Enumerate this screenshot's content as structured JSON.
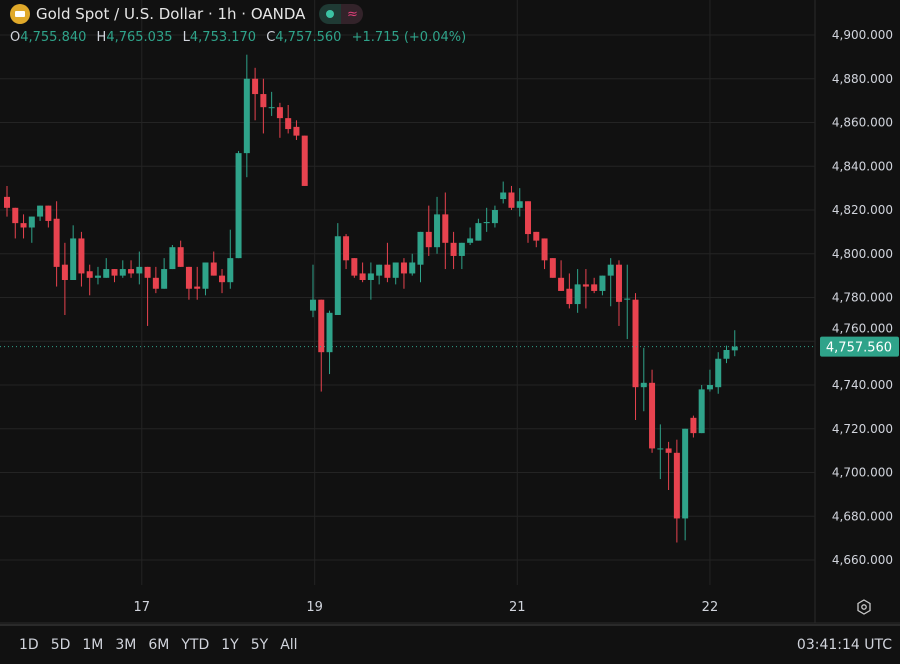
{
  "header": {
    "title": "Gold Spot / U.S. Dollar · 1h · OANDA",
    "logo_icon": "gold-bars-icon",
    "status_icon": "market-open-dot-icon",
    "indicator_icon": "approx-wave-icon",
    "ohlc": {
      "o_label": "O",
      "o": "4,755.840",
      "h_label": "H",
      "h": "4,765.035",
      "l_label": "L",
      "l": "4,753.170",
      "c_label": "C",
      "c": "4,757.560",
      "change": "+1.715 (+0.04%)"
    }
  },
  "chart_data": {
    "type": "candlestick",
    "title": "Gold Spot / U.S. Dollar · 1h · OANDA",
    "ylim": [
      4650,
      4910
    ],
    "y_ticks": [
      "4,900.000",
      "4,880.000",
      "4,860.000",
      "4,840.000",
      "4,820.000",
      "4,800.000",
      "4,780.000",
      "4,760.000",
      "4,740.000",
      "4,720.000",
      "4,700.000",
      "4,680.000",
      "4,660.000"
    ],
    "y_tick_values": [
      4900,
      4880,
      4860,
      4840,
      4820,
      4800,
      4780,
      4760,
      4740,
      4720,
      4700,
      4680,
      4660
    ],
    "x_ticks": [
      {
        "label": "17",
        "index": 16.3
      },
      {
        "label": "19",
        "index": 37.2
      },
      {
        "label": "21",
        "index": 61.7
      },
      {
        "label": "22",
        "index": 85
      }
    ],
    "last_price": 4757.56,
    "last_price_label": "4,757.560",
    "grid": true,
    "colors": {
      "up": "#2fa38a",
      "down": "#e8434f",
      "background": "#111111",
      "grid": "#242424"
    },
    "candles_ohlc": [
      [
        4826,
        4831,
        4817,
        4821
      ],
      [
        4821,
        4821,
        4807,
        4814
      ],
      [
        4814,
        4818,
        4807,
        4812
      ],
      [
        4812,
        4817,
        4805,
        4817
      ],
      [
        4817,
        4822,
        4815,
        4822
      ],
      [
        4822,
        4822,
        4812,
        4815
      ],
      [
        4816,
        4824,
        4785,
        4794
      ],
      [
        4795,
        4805,
        4772,
        4788
      ],
      [
        4788,
        4813,
        4788,
        4807
      ],
      [
        4807,
        4810,
        4785,
        4791
      ],
      [
        4792,
        4795,
        4781,
        4789
      ],
      [
        4789,
        4794,
        4786,
        4790
      ],
      [
        4789,
        4798,
        4789,
        4793
      ],
      [
        4793,
        4793,
        4787,
        4790
      ],
      [
        4790,
        4797,
        4789,
        4793
      ],
      [
        4793,
        4797,
        4789,
        4791
      ],
      [
        4791,
        4801,
        4786,
        4794
      ],
      [
        4794,
        4794,
        4767,
        4789
      ],
      [
        4789,
        4794,
        4782,
        4784
      ],
      [
        4784,
        4798,
        4784,
        4793
      ],
      [
        4793,
        4804,
        4793,
        4803
      ],
      [
        4803,
        4806,
        4794,
        4794
      ],
      [
        4794,
        4794,
        4779,
        4784
      ],
      [
        4785,
        4794,
        4779,
        4784
      ],
      [
        4784,
        4796,
        4781,
        4796
      ],
      [
        4796,
        4801,
        4790,
        4790
      ],
      [
        4790,
        4793,
        4782,
        4787
      ],
      [
        4787,
        4811,
        4784,
        4798
      ],
      [
        4798,
        4847,
        4798,
        4846
      ],
      [
        4846,
        4891,
        4835,
        4880
      ],
      [
        4880,
        4885,
        4861,
        4873
      ],
      [
        4873,
        4880,
        4855,
        4867
      ],
      [
        4867,
        4874,
        4863,
        4867
      ],
      [
        4867,
        4869,
        4853,
        4862
      ],
      [
        4862,
        4868,
        4855,
        4857
      ],
      [
        4858,
        4861,
        4852,
        4854
      ],
      [
        4854,
        4854,
        4831,
        4831
      ],
      [
        4774,
        4795,
        4771,
        4779
      ],
      [
        4779,
        4779,
        4737,
        4755
      ],
      [
        4755,
        4774,
        4745,
        4773
      ],
      [
        4772,
        4814,
        4772,
        4808
      ],
      [
        4808,
        4809,
        4793,
        4797
      ],
      [
        4798,
        4798,
        4789,
        4790
      ],
      [
        4791,
        4796,
        4787,
        4788
      ],
      [
        4788,
        4796,
        4779,
        4791
      ],
      [
        4790,
        4795,
        4786,
        4795
      ],
      [
        4795,
        4805,
        4787,
        4789
      ],
      [
        4789,
        4796,
        4786,
        4796
      ],
      [
        4796,
        4798,
        4784,
        4791
      ],
      [
        4791,
        4800,
        4790,
        4796
      ],
      [
        4795,
        4810,
        4787,
        4810
      ],
      [
        4810,
        4822,
        4799,
        4803
      ],
      [
        4803,
        4826,
        4800,
        4818
      ],
      [
        4818,
        4828,
        4793,
        4805
      ],
      [
        4805,
        4810,
        4793,
        4799
      ],
      [
        4799,
        4805,
        4793,
        4805
      ],
      [
        4805,
        4812,
        4804,
        4807
      ],
      [
        4806,
        4816,
        4806,
        4814
      ],
      [
        4814,
        4821,
        4810,
        4814.5
      ],
      [
        4814,
        4822,
        4812,
        4820
      ],
      [
        4825,
        4833,
        4823,
        4828
      ],
      [
        4828,
        4831,
        4820,
        4821
      ],
      [
        4821,
        4830,
        4817,
        4824
      ],
      [
        4824,
        4824,
        4805,
        4809
      ],
      [
        4810,
        4810,
        4803,
        4806
      ],
      [
        4807,
        4807,
        4793,
        4797
      ],
      [
        4798,
        4798,
        4789,
        4789
      ],
      [
        4789,
        4797,
        4783,
        4783
      ],
      [
        4784,
        4791,
        4775,
        4777
      ],
      [
        4777,
        4793,
        4773,
        4786
      ],
      [
        4786,
        4793,
        4775,
        4785
      ],
      [
        4786,
        4789,
        4782,
        4783
      ],
      [
        4783,
        4790,
        4781,
        4790
      ],
      [
        4790,
        4798,
        4776,
        4795
      ],
      [
        4795,
        4797,
        4767,
        4778
      ],
      [
        4779,
        4795,
        4761,
        4779.5
      ],
      [
        4779,
        4782,
        4724,
        4739
      ],
      [
        4739,
        4757,
        4728,
        4741
      ],
      [
        4741,
        4747,
        4709,
        4711
      ],
      [
        4711,
        4722,
        4697,
        4711
      ],
      [
        4711,
        4714,
        4692,
        4709
      ],
      [
        4709,
        4715,
        4668,
        4679
      ],
      [
        4679,
        4720,
        4669,
        4720
      ],
      [
        4725,
        4726,
        4716,
        4718
      ],
      [
        4718,
        4740,
        4718,
        4738
      ],
      [
        4738,
        4747,
        4737,
        4740
      ],
      [
        4739,
        4755,
        4736,
        4752
      ],
      [
        4752,
        4758,
        4750,
        4756
      ],
      [
        4755.84,
        4765.035,
        4753.17,
        4757.56
      ]
    ]
  },
  "footer": {
    "ranges": [
      "1D",
      "5D",
      "1M",
      "3M",
      "6M",
      "YTD",
      "1Y",
      "5Y",
      "All"
    ],
    "clock": "03:41:14 UTC",
    "settings_icon": "hexagon-settings-icon"
  }
}
